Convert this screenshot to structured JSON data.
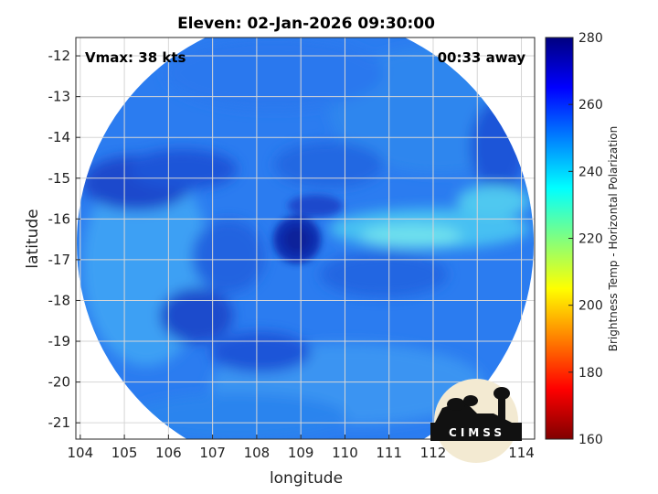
{
  "chart_data": {
    "type": "heatmap",
    "title": "Eleven: 02-Jan-2026 09:30:00",
    "annotations": {
      "vmax": "Vmax: 38 kts",
      "away": "00:33 away"
    },
    "xlabel": "longitude",
    "ylabel": "latitude",
    "xlim": [
      103.9,
      114.3
    ],
    "ylim": [
      -21.4,
      -11.55
    ],
    "x_ticks": [
      "104",
      "105",
      "106",
      "107",
      "108",
      "109",
      "110",
      "111",
      "112",
      "113",
      "114"
    ],
    "x_tick_values": [
      104,
      105,
      106,
      107,
      108,
      109,
      110,
      111,
      112,
      113,
      114
    ],
    "y_ticks": [
      "-12",
      "-13",
      "-14",
      "-15",
      "-16",
      "-17",
      "-18",
      "-19",
      "-20",
      "-21"
    ],
    "y_tick_values": [
      -12,
      -13,
      -14,
      -15,
      -16,
      -17,
      -18,
      -19,
      -20,
      -21
    ],
    "grid": true,
    "colorbar": {
      "label": "Brightness Temp - Horizontal Polarization",
      "range": [
        160,
        280
      ],
      "ticks": [
        "280",
        "260",
        "240",
        "220",
        "200",
        "180",
        "160"
      ],
      "tick_values": [
        280,
        260,
        240,
        220,
        200,
        180,
        160
      ],
      "colormap": [
        "#7f0000",
        "#ff0000",
        "#ff7f00",
        "#ffff00",
        "#7fff7f",
        "#00ffff",
        "#007fff",
        "#0000ff",
        "#00008f"
      ]
    },
    "swath_center": {
      "lon": 109.1,
      "lat": -16.6
    },
    "eye_center": {
      "lon": 108.9,
      "lat": -16.5
    },
    "logo_text": "CIMSS"
  }
}
